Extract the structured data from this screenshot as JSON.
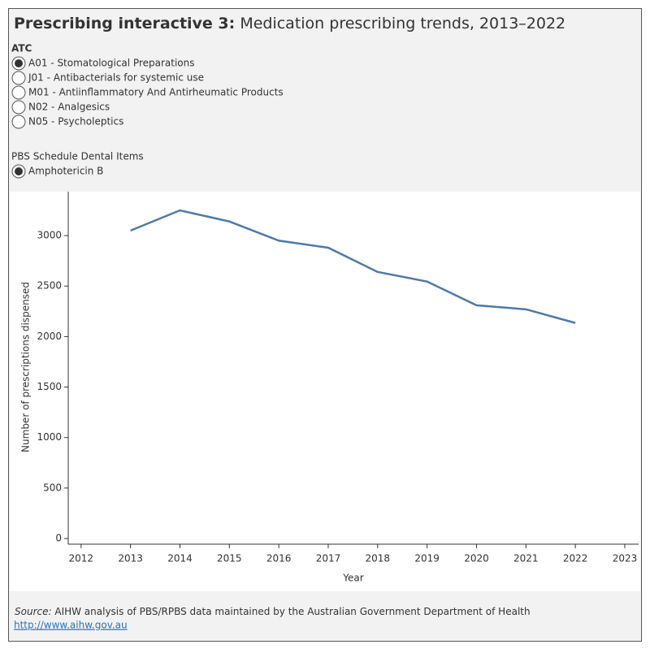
{
  "header": {
    "title_bold": "Prescribing interactive 3:",
    "title_rest": "Medication prescribing trends, 2013–2022"
  },
  "filters": [
    {
      "label": "ATC",
      "selected": 0,
      "options": [
        "A01 - Stomatological Preparations",
        "J01 - Antibacterials for systemic use",
        "M01 - Antiinflammatory And Antirheumatic Products",
        "N02 - Analgesics",
        "N05 - Psycholeptics"
      ]
    },
    {
      "label": "PBS Schedule Dental Items",
      "selected": 0,
      "options": [
        "Amphotericin B"
      ]
    }
  ],
  "chart_data": {
    "type": "line",
    "x_label": "Year",
    "y_label": "Number of prescriptions dispensed",
    "x": [
      2013,
      2014,
      2015,
      2016,
      2017,
      2018,
      2019,
      2020,
      2021,
      2022
    ],
    "values": [
      3050,
      3250,
      3140,
      2950,
      2880,
      2640,
      2545,
      2310,
      2270,
      2135
    ],
    "color": "#4e79a7",
    "xlim": [
      2011.74,
      2023.28
    ],
    "xticks": [
      2012,
      2013,
      2014,
      2015,
      2016,
      2017,
      2018,
      2019,
      2020,
      2021,
      2022,
      2023
    ],
    "ylim": [
      -56,
      3435
    ],
    "yticks": [
      0,
      500,
      1000,
      1500,
      2000,
      2500,
      3000
    ]
  },
  "source": {
    "label": "Source:",
    "text": "AIHW analysis of PBS/RPBS data maintained by the Australian Government Department of Health",
    "link": "http://www.aihw.gov.au"
  }
}
